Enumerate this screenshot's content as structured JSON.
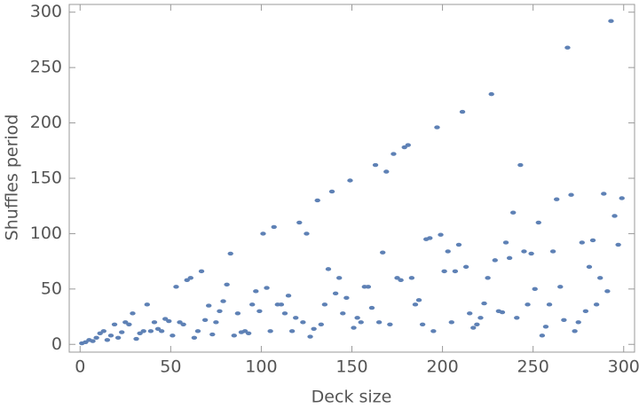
{
  "chart_data": {
    "type": "scatter",
    "xlabel": "Deck size",
    "ylabel": "Shuffles period",
    "color": "#5e81b5",
    "x": [
      1,
      3,
      5,
      7,
      9,
      11,
      13,
      15,
      17,
      19,
      21,
      23,
      25,
      27,
      29,
      31,
      33,
      35,
      37,
      39,
      41,
      43,
      45,
      47,
      49,
      51,
      53,
      55,
      57,
      59,
      61,
      63,
      65,
      67,
      69,
      71,
      73,
      75,
      77,
      79,
      81,
      83,
      85,
      87,
      89,
      91,
      93,
      95,
      97,
      99,
      101,
      103,
      105,
      107,
      109,
      111,
      113,
      115,
      117,
      119,
      121,
      123,
      125,
      127,
      129,
      131,
      133,
      135,
      137,
      139,
      141,
      143,
      145,
      147,
      149,
      151,
      153,
      155,
      157,
      159,
      161,
      163,
      165,
      167,
      169,
      171,
      173,
      175,
      177,
      179,
      181,
      183,
      185,
      187,
      189,
      191,
      193,
      195,
      197,
      199,
      201,
      203,
      205,
      207,
      209,
      211,
      213,
      215,
      217,
      219,
      221,
      223,
      225,
      227,
      229,
      231,
      233,
      235,
      237,
      239,
      241,
      243,
      245,
      247,
      249,
      251,
      253,
      255,
      257,
      259,
      261,
      263,
      265,
      267,
      269,
      271,
      273,
      275,
      277,
      279,
      281,
      283,
      285,
      287,
      289,
      291,
      293,
      295,
      297,
      299
    ],
    "values": [
      1,
      2,
      4,
      3,
      6,
      10,
      12,
      4,
      8,
      18,
      6,
      11,
      20,
      18,
      28,
      5,
      10,
      12,
      36,
      12,
      20,
      14,
      12,
      23,
      21,
      8,
      52,
      20,
      18,
      58,
      60,
      6,
      12,
      66,
      22,
      35,
      9,
      20,
      30,
      39,
      54,
      82,
      8,
      28,
      11,
      12,
      10,
      36,
      48,
      30,
      100,
      51,
      12,
      106,
      36,
      36,
      28,
      44,
      12,
      24,
      110,
      20,
      100,
      7,
      14,
      130,
      18,
      36,
      68,
      138,
      46,
      60,
      28,
      42,
      148,
      15,
      24,
      20,
      52,
      52,
      33,
      162,
      20,
      83,
      156,
      18,
      172,
      60,
      58,
      178,
      180,
      60,
      36,
      40,
      18,
      95,
      96,
      12,
      196,
      99,
      66,
      84,
      20,
      66,
      90,
      210,
      70,
      28,
      15,
      18,
      24,
      37,
      60,
      226,
      76,
      30,
      29,
      92,
      78,
      119,
      24,
      162,
      84,
      36,
      82,
      50,
      110,
      8,
      16,
      36,
      84,
      131,
      52,
      22,
      268,
      135,
      12,
      20,
      92,
      30,
      70,
      94,
      36,
      60,
      136,
      48,
      292,
      116,
      90,
      132
    ],
    "xlim": [
      -6,
      306
    ],
    "ylim": [
      -7,
      307
    ],
    "xticks": [
      0,
      50,
      100,
      150,
      200,
      250,
      300
    ],
    "yticks": [
      0,
      50,
      100,
      150,
      200,
      250,
      300
    ]
  }
}
